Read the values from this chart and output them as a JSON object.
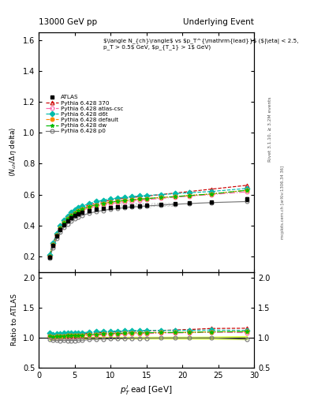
{
  "title_left": "13000 GeV pp",
  "title_right": "Underlying Event",
  "rivet_label": "Rivet 3.1.10, ≥ 3.2M events",
  "mcplots_label": "mcplots.cern.ch [arXiv:1306.34 36]",
  "pt_lead": [
    1.5,
    2.0,
    2.5,
    3.0,
    3.5,
    4.0,
    4.5,
    5.0,
    5.5,
    6.0,
    7.0,
    8.0,
    9.0,
    10.0,
    11.0,
    12.0,
    13.0,
    14.0,
    15.0,
    17.0,
    19.0,
    21.0,
    24.0,
    29.0
  ],
  "atlas_y": [
    0.195,
    0.27,
    0.33,
    0.375,
    0.405,
    0.43,
    0.45,
    0.465,
    0.475,
    0.485,
    0.495,
    0.505,
    0.51,
    0.515,
    0.52,
    0.522,
    0.524,
    0.528,
    0.53,
    0.535,
    0.54,
    0.545,
    0.55,
    0.57
  ],
  "atlas_yerr": [
    0.008,
    0.008,
    0.008,
    0.008,
    0.007,
    0.007,
    0.007,
    0.007,
    0.007,
    0.007,
    0.007,
    0.007,
    0.007,
    0.007,
    0.007,
    0.007,
    0.007,
    0.007,
    0.007,
    0.007,
    0.008,
    0.008,
    0.009,
    0.015
  ],
  "p370_y": [
    0.21,
    0.285,
    0.348,
    0.395,
    0.428,
    0.455,
    0.475,
    0.492,
    0.505,
    0.516,
    0.532,
    0.545,
    0.555,
    0.563,
    0.57,
    0.576,
    0.581,
    0.586,
    0.59,
    0.6,
    0.61,
    0.62,
    0.635,
    0.66
  ],
  "atlas_csc_y": [
    0.2,
    0.272,
    0.335,
    0.38,
    0.412,
    0.438,
    0.458,
    0.474,
    0.487,
    0.497,
    0.513,
    0.525,
    0.534,
    0.542,
    0.548,
    0.554,
    0.559,
    0.563,
    0.567,
    0.575,
    0.583,
    0.59,
    0.6,
    0.618
  ],
  "d6t_y": [
    0.21,
    0.285,
    0.35,
    0.4,
    0.435,
    0.462,
    0.483,
    0.5,
    0.514,
    0.525,
    0.542,
    0.555,
    0.564,
    0.572,
    0.578,
    0.583,
    0.587,
    0.591,
    0.594,
    0.6,
    0.606,
    0.612,
    0.62,
    0.64
  ],
  "default_y": [
    0.2,
    0.274,
    0.338,
    0.385,
    0.418,
    0.445,
    0.465,
    0.482,
    0.495,
    0.506,
    0.522,
    0.534,
    0.543,
    0.551,
    0.557,
    0.562,
    0.567,
    0.571,
    0.574,
    0.581,
    0.587,
    0.594,
    0.604,
    0.628
  ],
  "dw_y": [
    0.2,
    0.274,
    0.338,
    0.385,
    0.418,
    0.445,
    0.465,
    0.482,
    0.495,
    0.506,
    0.522,
    0.534,
    0.543,
    0.551,
    0.557,
    0.562,
    0.567,
    0.571,
    0.574,
    0.581,
    0.587,
    0.594,
    0.604,
    0.628
  ],
  "p0_y": [
    0.19,
    0.258,
    0.315,
    0.357,
    0.387,
    0.41,
    0.428,
    0.443,
    0.455,
    0.464,
    0.479,
    0.49,
    0.498,
    0.505,
    0.511,
    0.515,
    0.519,
    0.523,
    0.526,
    0.532,
    0.537,
    0.542,
    0.548,
    0.555
  ],
  "series": [
    {
      "label": "Pythia 6.428 370",
      "color": "#cc0000",
      "marker": "^",
      "linestyle": "--",
      "fillstyle": "none",
      "key": "p370_y"
    },
    {
      "label": "Pythia 6.428 atlas-csc",
      "color": "#ff66aa",
      "marker": "o",
      "linestyle": "-.",
      "fillstyle": "none",
      "key": "atlas_csc_y"
    },
    {
      "label": "Pythia 6.428 d6t",
      "color": "#00bbaa",
      "marker": "D",
      "linestyle": "--",
      "fillstyle": "full",
      "key": "d6t_y"
    },
    {
      "label": "Pythia 6.428 default",
      "color": "#ff8800",
      "marker": "o",
      "linestyle": "--",
      "fillstyle": "full",
      "key": "default_y"
    },
    {
      "label": "Pythia 6.428 dw",
      "color": "#00bb00",
      "marker": "*",
      "linestyle": "-.",
      "fillstyle": "full",
      "key": "dw_y"
    },
    {
      "label": "Pythia 6.428 p0",
      "color": "#777777",
      "marker": "o",
      "linestyle": "-",
      "fillstyle": "none",
      "key": "p0_y"
    }
  ],
  "ylim_main": [
    0.1,
    1.65
  ],
  "ylim_ratio": [
    0.5,
    2.1
  ],
  "xlim": [
    0,
    30
  ],
  "yticks_main": [
    0.2,
    0.4,
    0.6,
    0.8,
    1.0,
    1.2,
    1.4,
    1.6
  ],
  "yticks_ratio": [
    0.5,
    1.0,
    1.5,
    2.0
  ],
  "xticks": [
    0,
    5,
    10,
    15,
    20,
    25,
    30
  ]
}
